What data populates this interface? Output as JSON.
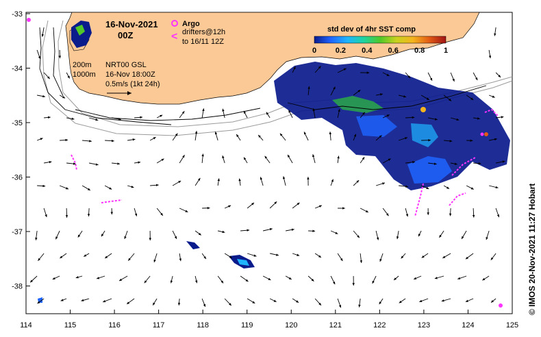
{
  "map": {
    "date": "16-Nov-2021",
    "time": "00Z",
    "argo_label": "Argo",
    "drifters_label": "drifters@12h",
    "drifters_range": "to 16/11 12Z",
    "contour_200": "200m",
    "contour_1000": "1000m",
    "product": "NRT00 GSL",
    "product_time": "16-Nov 18:00Z",
    "scale_label": "0.5m/s (1kt 24h)",
    "colorbar_title": "std dev of 4hr SST comp",
    "colorbar_ticks": [
      "0",
      "0.2",
      "0.4",
      "0.6",
      "0.8",
      "1"
    ],
    "credit": "© IMOS 20-Nov-2021 11:27 Hobart",
    "lon_ticks": [
      "114",
      "115",
      "116",
      "117",
      "118",
      "119",
      "120",
      "121",
      "122",
      "123",
      "124",
      "125"
    ],
    "lat_ticks": [
      "-33",
      "-34",
      "-35",
      "-36",
      "-37",
      "-38"
    ],
    "colors": {
      "land": "#fbc996",
      "drifters": "#ff33ff",
      "colorbar": [
        "#0a1b8c",
        "#1e64ff",
        "#1eb4ff",
        "#1ed4a0",
        "#50c82a",
        "#c8d21e",
        "#f5b41e",
        "#e25a14",
        "#a01414"
      ]
    }
  }
}
